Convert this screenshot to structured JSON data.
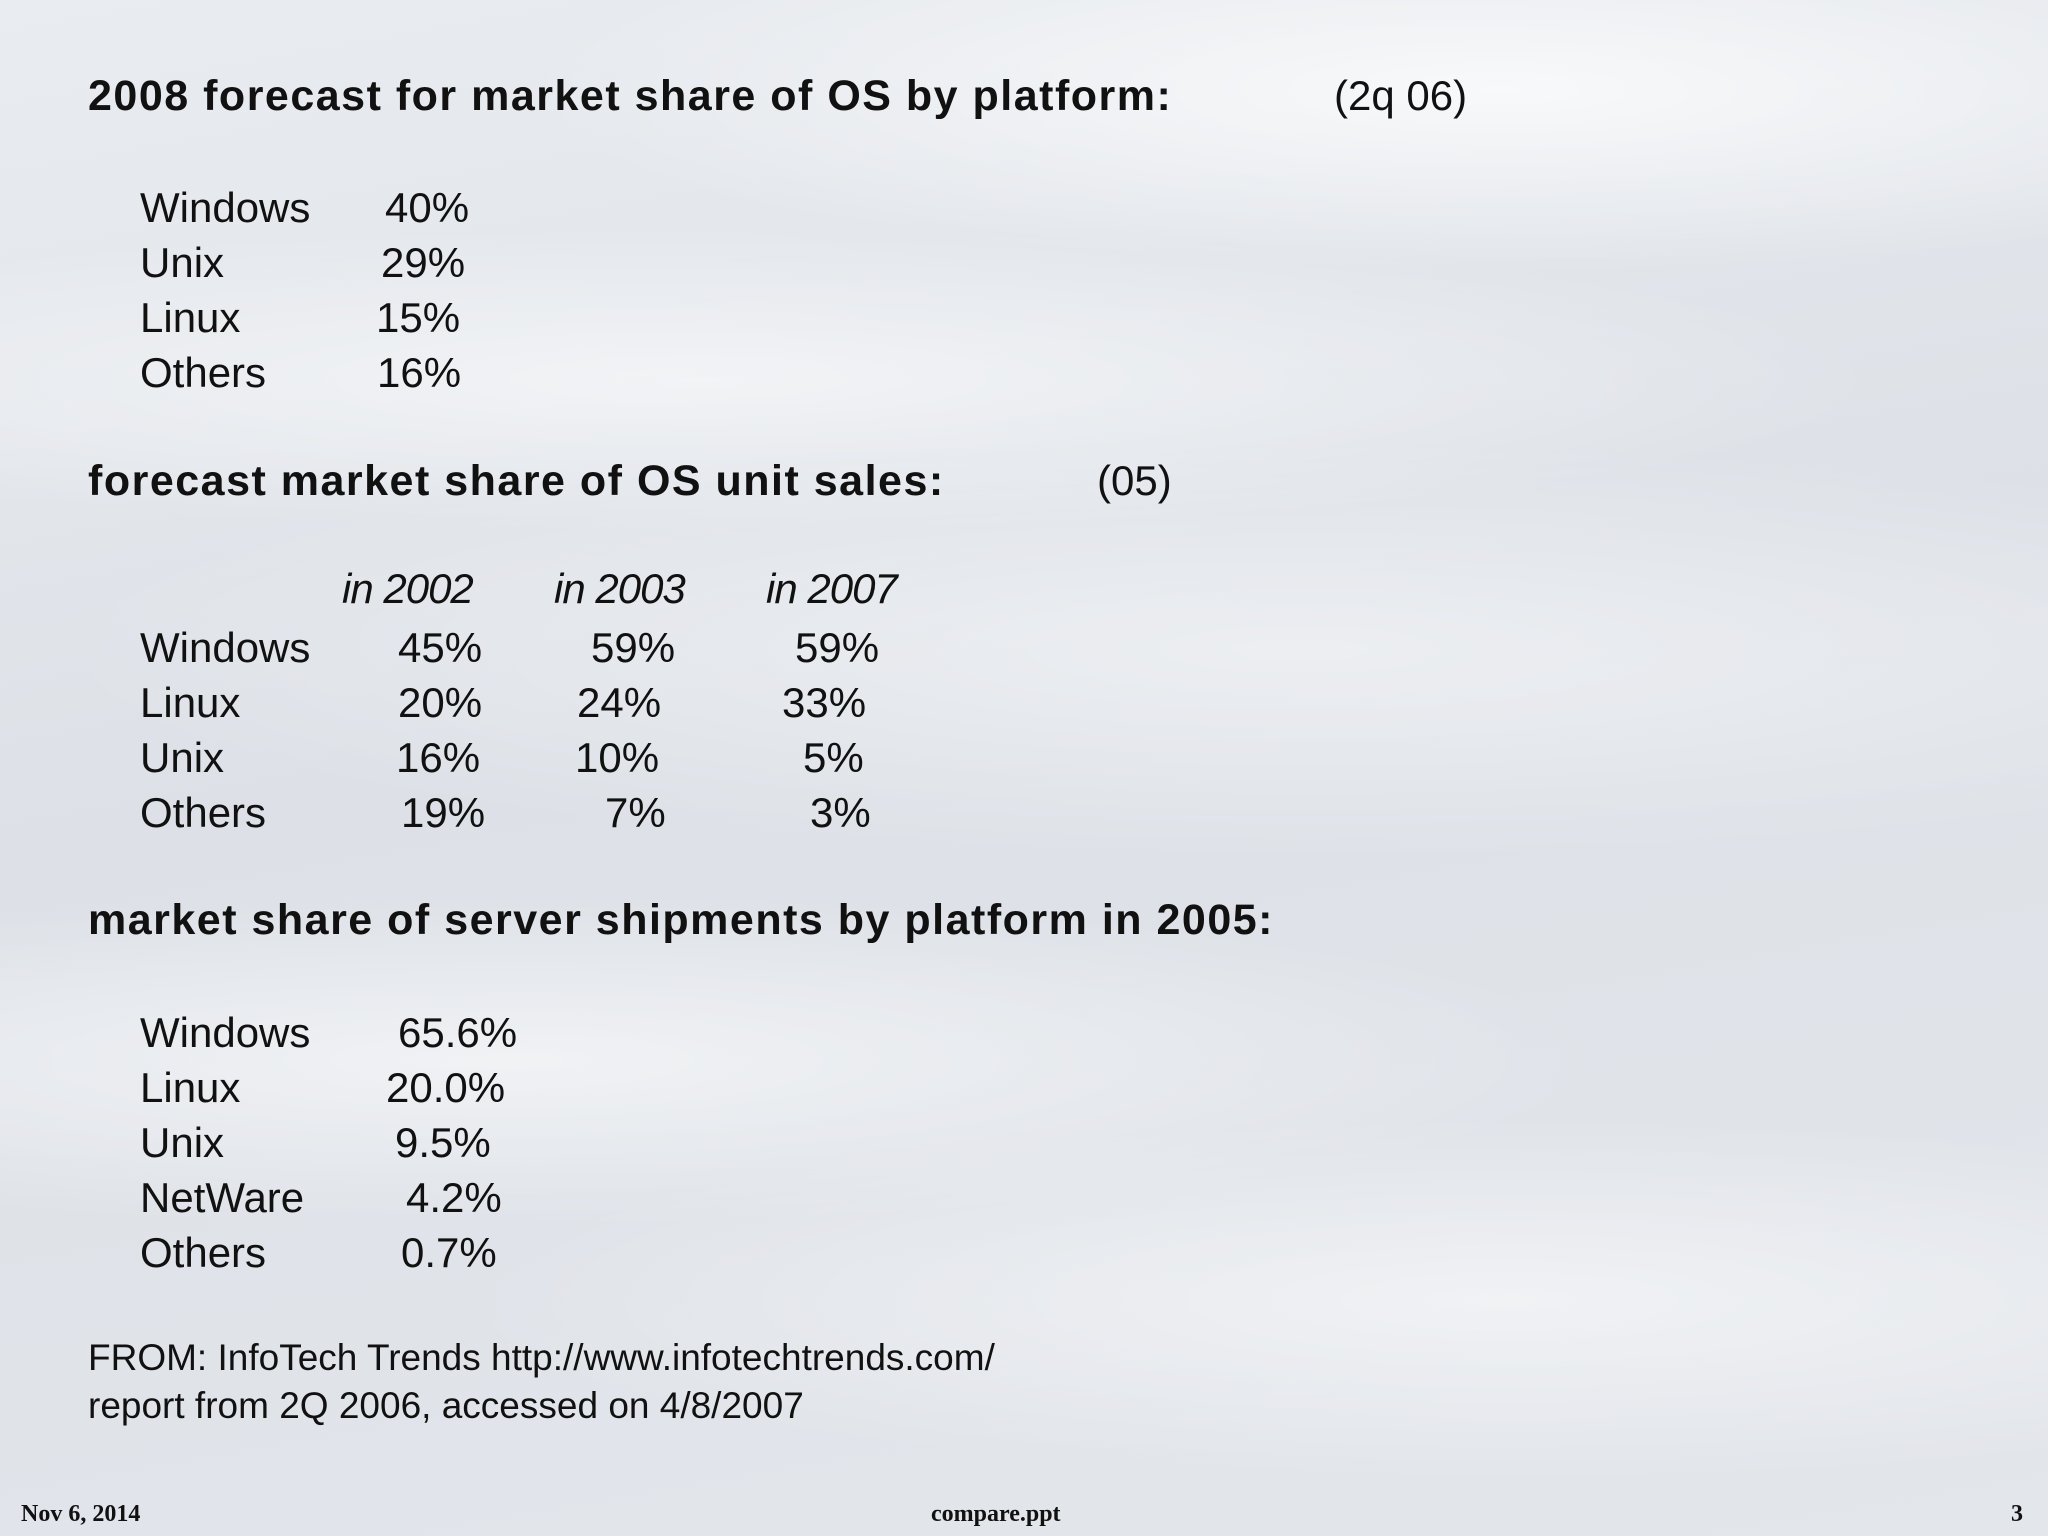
{
  "section1": {
    "heading": "2008 forecast for market share of OS by platform:",
    "note": "(2q 06)",
    "rows": [
      {
        "os": "Windows",
        "share": "40%"
      },
      {
        "os": "Unix",
        "share": "29%"
      },
      {
        "os": "Linux",
        "share": "15%"
      },
      {
        "os": "Others",
        "share": "16%"
      }
    ]
  },
  "section2": {
    "heading": "forecast market share of OS unit sales:",
    "note": "(05)",
    "columns": [
      "in 2002",
      "in 2003",
      "in 2007"
    ],
    "rows": [
      {
        "os": "Windows",
        "values": [
          "45%",
          "59%",
          "59%"
        ]
      },
      {
        "os": "Linux",
        "values": [
          "20%",
          "24%",
          "33%"
        ]
      },
      {
        "os": "Unix",
        "values": [
          "16%",
          "10%",
          "5%"
        ]
      },
      {
        "os": "Others",
        "values": [
          "19%",
          "7%",
          "3%"
        ]
      }
    ]
  },
  "section3": {
    "heading": "market share of server shipments by platform in 2005:",
    "rows": [
      {
        "os": "Windows",
        "share": "65.6%"
      },
      {
        "os": "Linux",
        "share": "20.0%"
      },
      {
        "os": "Unix",
        "share": "9.5%"
      },
      {
        "os": "NetWare",
        "share": "4.2%"
      },
      {
        "os": "Others",
        "share": "0.7%"
      }
    ]
  },
  "source": {
    "line1": "FROM: InfoTech Trends http://www.infotechtrends.com/",
    "line2": "report from 2Q 2006, accessed on 4/8/2007"
  },
  "footer": {
    "date": "Nov 6, 2014",
    "filename": "compare.ppt",
    "page": "3"
  }
}
